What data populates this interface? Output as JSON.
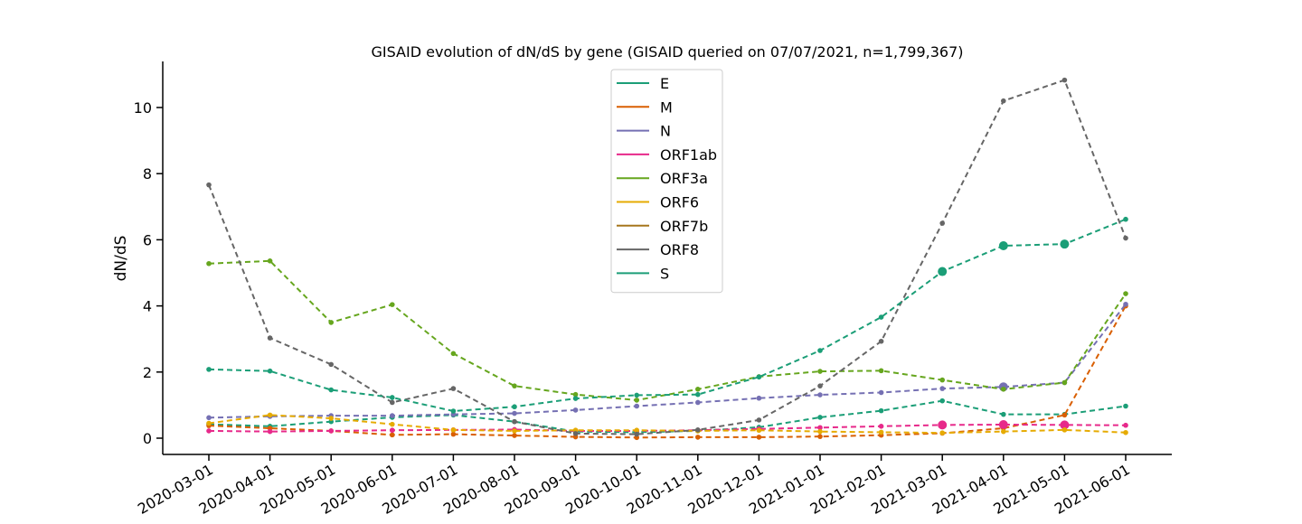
{
  "chart_data": {
    "type": "line",
    "title": "GISAID evolution of dN/dS by gene (GISAID queried on 07/07/2021, n=1,799,367)",
    "xlabel": "",
    "ylabel": "dN/dS",
    "ylim": [
      -0.5,
      11.4
    ],
    "yticks": [
      0,
      2,
      4,
      6,
      8,
      10
    ],
    "legend_position": "upper-center",
    "grid": false,
    "categories": [
      "2020-03-01",
      "2020-04-01",
      "2020-05-01",
      "2020-06-01",
      "2020-07-01",
      "2020-08-01",
      "2020-09-01",
      "2020-10-01",
      "2020-11-01",
      "2020-12-01",
      "2021-01-01",
      "2021-02-01",
      "2021-03-01",
      "2021-04-01",
      "2021-05-01",
      "2021-06-01"
    ],
    "series": [
      {
        "name": "E",
        "color": "#1b9e77",
        "values": [
          0.42,
          0.36,
          0.5,
          0.63,
          0.7,
          0.5,
          0.2,
          0.18,
          0.22,
          0.33,
          0.63,
          0.83,
          1.13,
          0.72,
          0.72,
          0.97
        ]
      },
      {
        "name": "M",
        "color": "#d95f02",
        "values": [
          0.38,
          0.3,
          0.22,
          0.1,
          0.12,
          0.08,
          0.04,
          0.02,
          0.03,
          0.03,
          0.05,
          0.09,
          0.15,
          0.3,
          0.7,
          4.0
        ]
      },
      {
        "name": "N",
        "color": "#7570b3",
        "values": [
          0.62,
          0.66,
          0.68,
          0.68,
          0.72,
          0.75,
          0.85,
          0.97,
          1.08,
          1.21,
          1.31,
          1.38,
          1.5,
          1.55,
          1.68,
          4.05
        ]
      },
      {
        "name": "ORF1ab",
        "color": "#e7298a",
        "values": [
          0.22,
          0.2,
          0.22,
          0.24,
          0.25,
          0.26,
          0.22,
          0.22,
          0.24,
          0.28,
          0.32,
          0.36,
          0.4,
          0.41,
          0.4,
          0.39
        ]
      },
      {
        "name": "ORF3a",
        "color": "#66a61e",
        "values": [
          5.28,
          5.36,
          3.5,
          4.04,
          2.56,
          1.58,
          1.32,
          1.15,
          1.48,
          1.86,
          2.02,
          2.04,
          1.76,
          1.48,
          1.68,
          4.37
        ]
      },
      {
        "name": "ORF6",
        "color": "#e6ab02",
        "values": [
          0.45,
          0.7,
          0.6,
          0.42,
          0.25,
          0.22,
          0.24,
          0.24,
          0.22,
          0.24,
          0.2,
          0.18,
          0.16,
          0.2,
          0.25,
          0.17
        ]
      },
      {
        "name": "ORF7b",
        "color": "#a6761d",
        "values": [
          null,
          null,
          null,
          null,
          null,
          null,
          null,
          null,
          null,
          null,
          null,
          null,
          null,
          null,
          null,
          null
        ]
      },
      {
        "name": "ORF8",
        "color": "#666666",
        "values": [
          7.66,
          3.03,
          2.23,
          1.08,
          1.5,
          0.5,
          0.14,
          0.12,
          0.25,
          0.55,
          1.58,
          2.93,
          6.5,
          10.2,
          10.83,
          6.05
        ]
      },
      {
        "name": "S",
        "color": "#1b9e77",
        "values": [
          2.08,
          2.03,
          1.46,
          1.23,
          0.82,
          0.95,
          1.2,
          1.3,
          1.32,
          1.85,
          2.65,
          3.66,
          5.04,
          5.82,
          5.87,
          6.62
        ]
      }
    ],
    "large_markers": [
      {
        "series": "S",
        "x": "2021-03-01"
      },
      {
        "series": "S",
        "x": "2021-04-01"
      },
      {
        "series": "S",
        "x": "2021-05-01"
      },
      {
        "series": "ORF1ab",
        "x": "2021-03-01"
      },
      {
        "series": "ORF1ab",
        "x": "2021-04-01"
      },
      {
        "series": "ORF1ab",
        "x": "2021-05-01"
      },
      {
        "series": "N",
        "x": "2021-04-01"
      }
    ]
  }
}
